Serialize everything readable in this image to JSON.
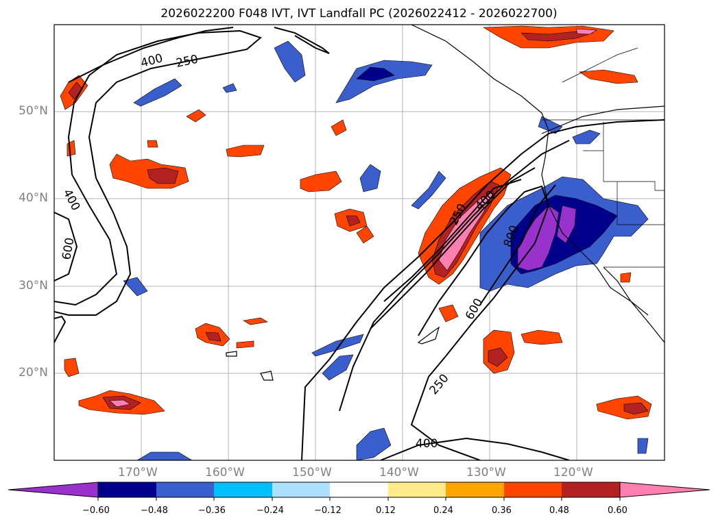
{
  "title": "2026022200 F048 IVT, IVT Landfall PC (2026022412 - 2026022700)",
  "map": {
    "lat_labels": [
      "50°N",
      "40°N",
      "30°N",
      "20°N"
    ],
    "lon_labels": [
      "170°W",
      "160°W",
      "150°W",
      "140°W",
      "130°W",
      "120°W"
    ],
    "contour_labels": [
      "400",
      "250",
      "400",
      "600",
      "250",
      "400",
      "800",
      "600",
      "250",
      "400"
    ]
  },
  "colorbar": {
    "ticks": [
      "−0.60",
      "−0.48",
      "−0.36",
      "−0.24",
      "−0.12",
      "0.12",
      "0.24",
      "0.36",
      "0.48",
      "0.60"
    ],
    "colors": [
      "#9932cc",
      "#00008b",
      "#3a5fcd",
      "#00bfff",
      "#b0e0ff",
      "#ffffff",
      "#ffeb8c",
      "#ffa500",
      "#ff4500",
      "#b22222",
      "#ff80b0"
    ]
  }
}
